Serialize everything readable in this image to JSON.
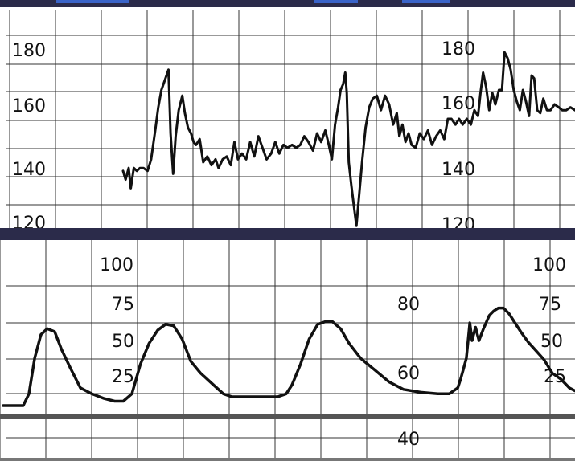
{
  "colors": {
    "trace": "#111111",
    "grid": "#333333",
    "band": "#2b2b4a",
    "background": "#ffffff"
  },
  "chart_data": [
    {
      "type": "line",
      "name_key": "fhr",
      "ylim": [
        115,
        195
      ],
      "grid": true,
      "tick_labels": [
        "180",
        "160",
        "140",
        "120"
      ],
      "tick_values": [
        180,
        160,
        140,
        120
      ],
      "series": [
        {
          "values": [
            [
              0.115,
              137
            ],
            [
              0.12,
              134
            ],
            [
              0.126,
              138
            ],
            [
              0.13,
              131
            ],
            [
              0.136,
              138
            ],
            [
              0.142,
              137
            ],
            [
              0.148,
              138
            ],
            [
              0.155,
              138
            ],
            [
              0.163,
              137
            ],
            [
              0.17,
              141
            ],
            [
              0.178,
              151
            ],
            [
              0.184,
              159
            ],
            [
              0.19,
              165
            ],
            [
              0.196,
              168
            ],
            [
              0.204,
              172
            ],
            [
              0.208,
              150
            ],
            [
              0.213,
              136
            ],
            [
              0.218,
              149
            ],
            [
              0.224,
              158
            ],
            [
              0.231,
              163
            ],
            [
              0.236,
              157
            ],
            [
              0.242,
              152
            ],
            [
              0.248,
              150
            ],
            [
              0.253,
              147
            ],
            [
              0.258,
              146
            ],
            [
              0.265,
              148
            ],
            [
              0.272,
              140
            ],
            [
              0.28,
              142
            ],
            [
              0.288,
              139
            ],
            [
              0.296,
              141
            ],
            [
              0.302,
              138
            ],
            [
              0.31,
              141
            ],
            [
              0.318,
              142
            ],
            [
              0.326,
              139
            ],
            [
              0.333,
              147
            ],
            [
              0.34,
              141
            ],
            [
              0.348,
              143
            ],
            [
              0.356,
              141
            ],
            [
              0.364,
              147
            ],
            [
              0.372,
              142
            ],
            [
              0.38,
              149
            ],
            [
              0.388,
              145
            ],
            [
              0.396,
              141
            ],
            [
              0.405,
              143
            ],
            [
              0.413,
              147
            ],
            [
              0.421,
              143
            ],
            [
              0.429,
              146
            ],
            [
              0.437,
              145
            ],
            [
              0.446,
              146
            ],
            [
              0.454,
              145
            ],
            [
              0.462,
              146
            ],
            [
              0.47,
              149
            ],
            [
              0.478,
              147
            ],
            [
              0.487,
              144
            ],
            [
              0.495,
              150
            ],
            [
              0.503,
              147
            ],
            [
              0.511,
              151
            ],
            [
              0.518,
              146
            ],
            [
              0.524,
              141
            ],
            [
              0.53,
              153
            ],
            [
              0.536,
              159
            ],
            [
              0.541,
              165
            ],
            [
              0.546,
              167
            ],
            [
              0.55,
              171
            ],
            [
              0.553,
              164
            ],
            [
              0.557,
              140
            ],
            [
              0.562,
              132
            ],
            [
              0.567,
              125
            ],
            [
              0.572,
              118
            ],
            [
              0.577,
              128
            ],
            [
              0.583,
              140
            ],
            [
              0.59,
              152
            ],
            [
              0.597,
              159
            ],
            [
              0.604,
              162
            ],
            [
              0.612,
              163
            ],
            [
              0.62,
              158
            ],
            [
              0.628,
              163
            ],
            [
              0.636,
              160
            ],
            [
              0.644,
              153
            ],
            [
              0.651,
              157
            ],
            [
              0.656,
              149
            ],
            [
              0.662,
              153
            ],
            [
              0.668,
              147
            ],
            [
              0.674,
              150
            ],
            [
              0.68,
              146
            ],
            [
              0.688,
              145
            ],
            [
              0.696,
              150
            ],
            [
              0.704,
              148
            ],
            [
              0.712,
              151
            ],
            [
              0.72,
              146
            ],
            [
              0.728,
              149
            ],
            [
              0.736,
              151
            ],
            [
              0.744,
              148
            ],
            [
              0.751,
              155
            ],
            [
              0.758,
              155
            ],
            [
              0.766,
              153
            ],
            [
              0.773,
              155
            ],
            [
              0.78,
              153
            ],
            [
              0.788,
              155
            ],
            [
              0.796,
              153
            ],
            [
              0.803,
              158
            ],
            [
              0.81,
              156
            ],
            [
              0.815,
              164
            ],
            [
              0.82,
              171
            ],
            [
              0.826,
              166
            ],
            [
              0.832,
              158
            ],
            [
              0.838,
              164
            ],
            [
              0.844,
              160
            ],
            [
              0.851,
              165
            ],
            [
              0.857,
              165
            ],
            [
              0.862,
              178
            ],
            [
              0.868,
              176
            ],
            [
              0.874,
              172
            ],
            [
              0.88,
              165
            ],
            [
              0.886,
              161
            ],
            [
              0.892,
              158
            ],
            [
              0.898,
              165
            ],
            [
              0.904,
              161
            ],
            [
              0.91,
              156
            ],
            [
              0.915,
              170
            ],
            [
              0.92,
              169
            ],
            [
              0.926,
              158
            ],
            [
              0.932,
              157
            ],
            [
              0.938,
              162
            ],
            [
              0.945,
              158
            ],
            [
              0.952,
              158
            ],
            [
              0.96,
              160
            ],
            [
              0.968,
              159
            ],
            [
              0.975,
              158
            ],
            [
              0.983,
              158
            ],
            [
              0.991,
              159
            ],
            [
              1.0,
              158
            ]
          ]
        }
      ]
    },
    {
      "type": "line",
      "name_key": "toco",
      "ylim": [
        -8,
        115
      ],
      "grid": true,
      "tick_labels": [
        "100",
        "75",
        "50",
        "25"
      ],
      "tick_values": [
        100,
        75,
        50,
        25
      ],
      "extra_labels": [
        "80",
        "60",
        "40"
      ],
      "series": [
        {
          "values": [
            [
              0.0,
              0
            ],
            [
              0.035,
              0
            ],
            [
              0.045,
              8
            ],
            [
              0.055,
              32
            ],
            [
              0.066,
              48
            ],
            [
              0.077,
              52
            ],
            [
              0.09,
              50
            ],
            [
              0.102,
              38
            ],
            [
              0.118,
              25
            ],
            [
              0.135,
              12
            ],
            [
              0.155,
              8
            ],
            [
              0.175,
              5
            ],
            [
              0.195,
              3
            ],
            [
              0.21,
              3
            ],
            [
              0.225,
              8
            ],
            [
              0.24,
              28
            ],
            [
              0.255,
              42
            ],
            [
              0.27,
              51
            ],
            [
              0.284,
              55
            ],
            [
              0.298,
              54
            ],
            [
              0.313,
              45
            ],
            [
              0.328,
              30
            ],
            [
              0.345,
              22
            ],
            [
              0.365,
              15
            ],
            [
              0.385,
              8
            ],
            [
              0.4,
              6
            ],
            [
              0.42,
              6
            ],
            [
              0.45,
              6
            ],
            [
              0.48,
              6
            ],
            [
              0.495,
              8
            ],
            [
              0.505,
              14
            ],
            [
              0.52,
              28
            ],
            [
              0.535,
              45
            ],
            [
              0.55,
              55
            ],
            [
              0.565,
              57
            ],
            [
              0.575,
              57
            ],
            [
              0.59,
              52
            ],
            [
              0.605,
              42
            ],
            [
              0.625,
              32
            ],
            [
              0.65,
              24
            ],
            [
              0.675,
              16
            ],
            [
              0.7,
              11
            ],
            [
              0.73,
              9
            ],
            [
              0.76,
              8
            ],
            [
              0.78,
              8
            ],
            [
              0.795,
              12
            ],
            [
              0.8,
              18
            ],
            [
              0.805,
              25
            ],
            [
              0.81,
              32
            ],
            [
              0.816,
              56
            ],
            [
              0.82,
              44
            ],
            [
              0.826,
              53
            ],
            [
              0.832,
              44
            ],
            [
              0.84,
              52
            ],
            [
              0.85,
              61
            ],
            [
              0.858,
              64
            ],
            [
              0.866,
              66
            ],
            [
              0.875,
              66
            ],
            [
              0.885,
              62
            ],
            [
              0.895,
              56
            ],
            [
              0.905,
              50
            ],
            [
              0.918,
              43
            ],
            [
              0.932,
              37
            ],
            [
              0.946,
              31
            ],
            [
              0.96,
              22
            ],
            [
              0.975,
              18
            ],
            [
              0.99,
              12
            ],
            [
              1.0,
              10
            ]
          ]
        }
      ]
    }
  ]
}
